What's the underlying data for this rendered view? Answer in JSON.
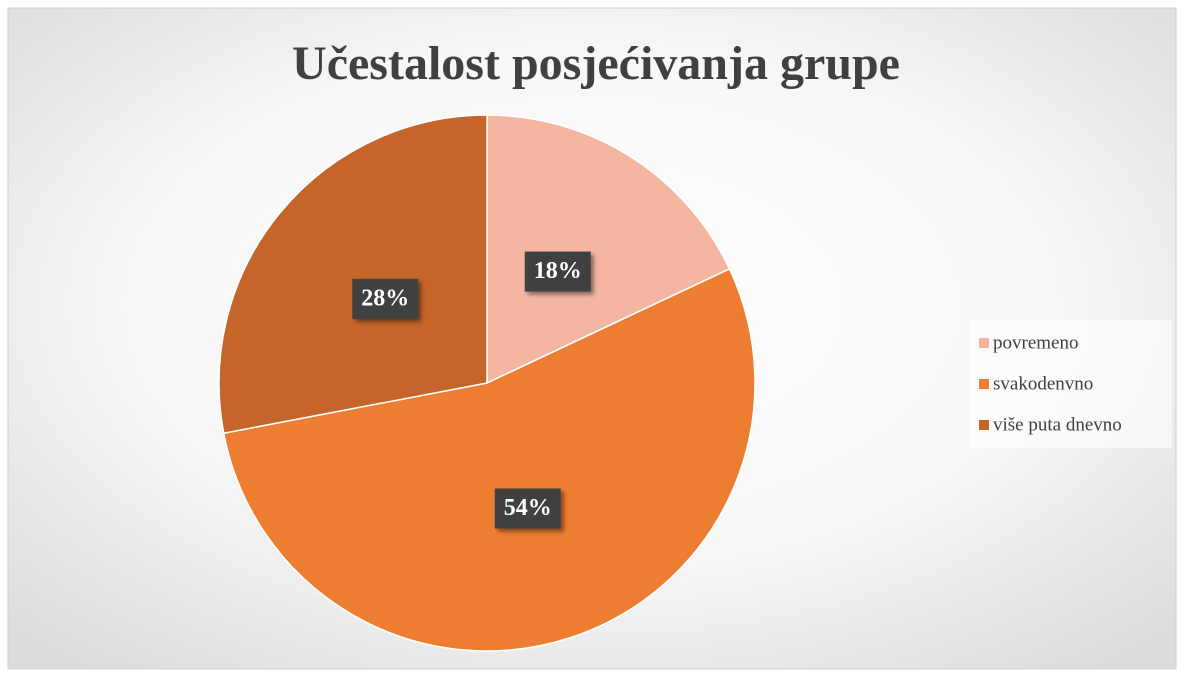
{
  "chart_data": {
    "type": "pie",
    "title": "Učestalost posjećivanja grupe",
    "categories": [
      "povremeno",
      "svakodenvno",
      "više puta dnevno"
    ],
    "values": [
      18,
      54,
      28
    ],
    "value_labels": [
      "18%",
      "54%",
      "28%"
    ],
    "colors": [
      "#f4b6a1",
      "#ed7d31",
      "#c5652a"
    ],
    "legend": "right"
  }
}
